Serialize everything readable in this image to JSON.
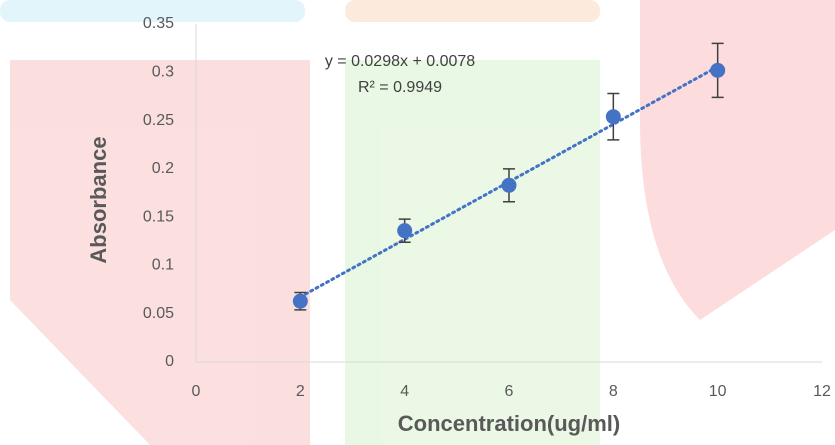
{
  "chart_data": {
    "type": "scatter",
    "x": [
      2,
      4,
      6,
      8,
      10
    ],
    "series": [
      {
        "color": "#4472c4",
        "values": [
          0.063,
          0.136,
          0.183,
          0.254,
          0.302
        ],
        "errors": [
          0.009,
          0.012,
          0.017,
          0.024,
          0.028
        ]
      }
    ],
    "trendline": {
      "slope": 0.0298,
      "intercept": 0.0078,
      "equation": "y = 0.0298x + 0.0078",
      "r_squared": "R² = 0.9949",
      "color": "#4472c4"
    },
    "xlabel": "Concentration(ug/ml)",
    "ylabel": "Absorbance",
    "xlim": [
      0,
      12
    ],
    "xticks": [
      0,
      2,
      4,
      6,
      8,
      10,
      12
    ],
    "ylim": [
      0,
      0.35
    ],
    "yticks": [
      0,
      0.05,
      0.1,
      0.15,
      0.2,
      0.25,
      0.3,
      0.35
    ],
    "grid": false
  }
}
